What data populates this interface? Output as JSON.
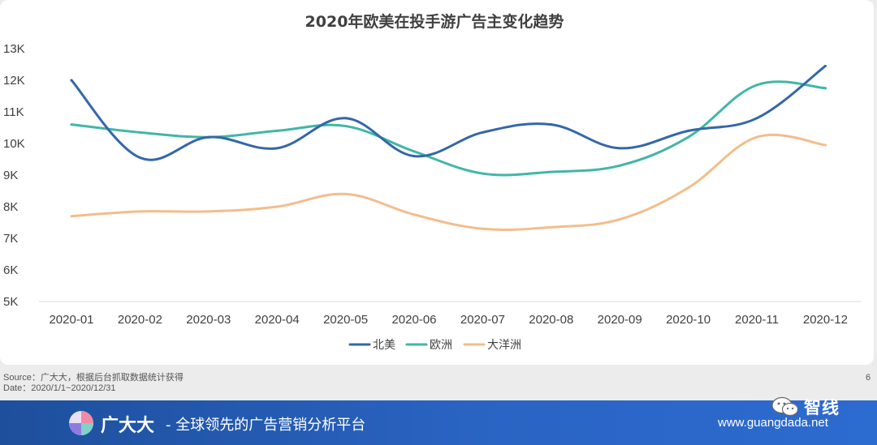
{
  "chart_data": {
    "type": "line",
    "title": "2020年欧美在投手游广告主变化趋势",
    "xlabel": "",
    "ylabel": "",
    "categories": [
      "2020-01",
      "2020-02",
      "2020-03",
      "2020-04",
      "2020-05",
      "2020-06",
      "2020-07",
      "2020-08",
      "2020-09",
      "2020-10",
      "2020-11",
      "2020-12"
    ],
    "y_ticks": [
      5000,
      6000,
      7000,
      8000,
      9000,
      10000,
      11000,
      12000,
      13000
    ],
    "y_tick_labels": [
      "5K",
      "6K",
      "7K",
      "8K",
      "9K",
      "10K",
      "11K",
      "12K",
      "13K"
    ],
    "ylim": [
      5000,
      13000
    ],
    "grid": false,
    "legend_position": "bottom-center",
    "series": [
      {
        "name": "北美",
        "color": "#3567a8",
        "values": [
          12000,
          9550,
          10200,
          9850,
          10800,
          9600,
          10350,
          10600,
          9850,
          10400,
          10800,
          12450
        ]
      },
      {
        "name": "欧洲",
        "color": "#41b6a8",
        "values": [
          10600,
          10350,
          10200,
          10400,
          10550,
          9750,
          9050,
          9100,
          9300,
          10200,
          11850,
          11750
        ]
      },
      {
        "name": "大洋洲",
        "color": "#f3bd8b",
        "values": [
          7700,
          7850,
          7850,
          8000,
          8400,
          7750,
          7300,
          7350,
          7600,
          8600,
          10200,
          9950
        ]
      }
    ]
  },
  "footer": {
    "source": "Source：广大大，根据后台抓取数据统计获得",
    "date": "Date：2020/1/1~2020/12/31",
    "page_number": "6",
    "brand": "广大大",
    "slogan": "- 全球领先的广告营销分析平台",
    "url": "www.guangdada.net",
    "wechat_label": "智线"
  }
}
